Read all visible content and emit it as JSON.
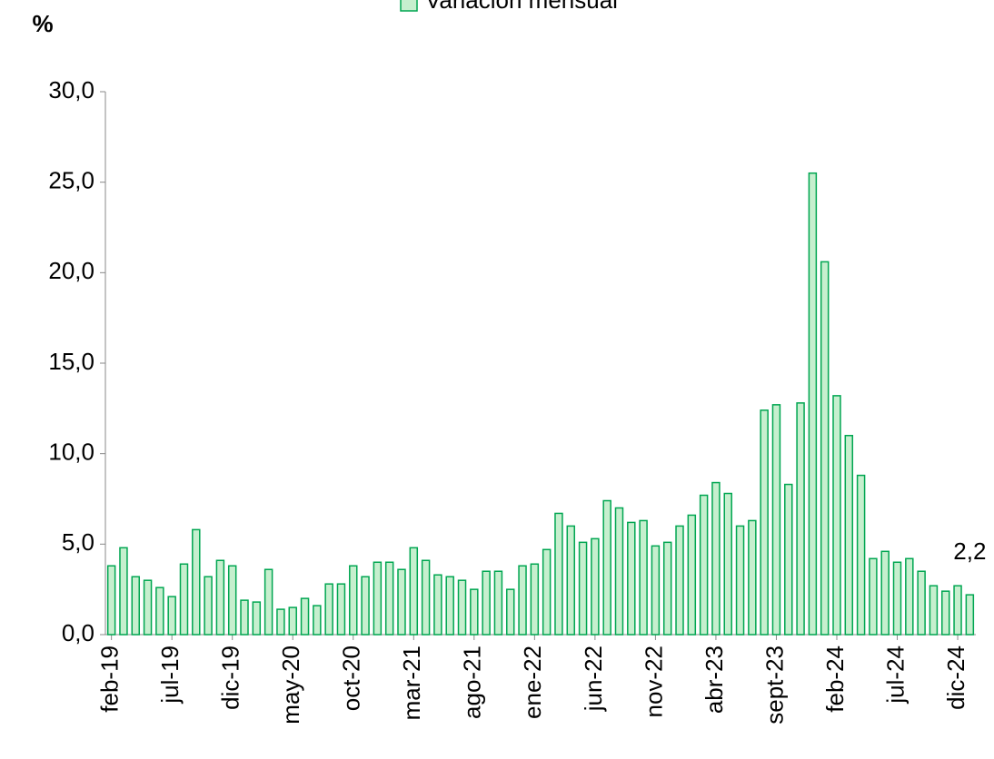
{
  "chart_data": {
    "type": "bar",
    "y_axis_label": "%",
    "series": [
      {
        "name": "Variación mensual",
        "color": "#c6efce",
        "edge_color": "#00a651",
        "values": [
          3.8,
          4.8,
          3.2,
          3.0,
          2.6,
          2.1,
          3.9,
          5.8,
          3.2,
          4.1,
          3.8,
          1.9,
          1.8,
          3.6,
          1.4,
          1.5,
          2.0,
          1.6,
          2.8,
          2.8,
          3.8,
          3.2,
          4.0,
          4.0,
          3.6,
          4.8,
          4.1,
          3.3,
          3.2,
          3.0,
          2.5,
          3.5,
          3.5,
          2.5,
          3.8,
          3.9,
          4.7,
          6.7,
          6.0,
          5.1,
          5.3,
          7.4,
          7.0,
          6.2,
          6.3,
          4.9,
          5.1,
          6.0,
          6.6,
          7.7,
          8.4,
          7.8,
          6.0,
          6.3,
          12.4,
          12.7,
          8.3,
          12.8,
          25.5,
          20.6,
          13.2,
          11.0,
          8.8,
          4.2,
          4.6,
          4.0,
          4.2,
          3.5,
          2.7,
          2.4,
          2.7,
          2.2
        ],
        "value_labels": [
          null,
          null,
          null,
          null,
          null,
          null,
          null,
          null,
          null,
          null,
          null,
          null,
          null,
          null,
          null,
          null,
          null,
          null,
          null,
          null,
          null,
          null,
          null,
          null,
          null,
          null,
          null,
          null,
          null,
          null,
          null,
          null,
          null,
          null,
          null,
          null,
          null,
          null,
          null,
          null,
          null,
          null,
          null,
          null,
          null,
          null,
          null,
          null,
          null,
          null,
          null,
          null,
          null,
          null,
          null,
          null,
          null,
          null,
          null,
          null,
          null,
          null,
          null,
          null,
          null,
          null,
          null,
          null,
          null,
          null,
          null,
          "2,2"
        ]
      }
    ],
    "categories": [
      "feb-19",
      null,
      null,
      null,
      null,
      "jul-19",
      null,
      null,
      null,
      null,
      "dic-19",
      null,
      null,
      null,
      null,
      "may-20",
      null,
      null,
      null,
      null,
      "oct-20",
      null,
      null,
      null,
      null,
      "mar-21",
      null,
      null,
      null,
      null,
      "ago-21",
      null,
      null,
      null,
      null,
      "ene-22",
      null,
      null,
      null,
      null,
      "jun-22",
      null,
      null,
      null,
      null,
      "nov-22",
      null,
      null,
      null,
      null,
      "abr-23",
      null,
      null,
      null,
      null,
      "sept-23",
      null,
      null,
      null,
      null,
      "feb-24",
      null,
      null,
      null,
      null,
      "jul-24",
      null,
      null,
      null,
      null,
      "dic-24",
      null
    ],
    "ylim": [
      0,
      30
    ],
    "yticks": [
      {
        "value": 0,
        "label": "0,0"
      },
      {
        "value": 5,
        "label": "5,0"
      },
      {
        "value": 10,
        "label": "10,0"
      },
      {
        "value": 15,
        "label": "15,0"
      },
      {
        "value": 20,
        "label": "20,0"
      },
      {
        "value": 25,
        "label": "25,0"
      },
      {
        "value": 30,
        "label": "30,0"
      }
    ],
    "legend": "top"
  }
}
